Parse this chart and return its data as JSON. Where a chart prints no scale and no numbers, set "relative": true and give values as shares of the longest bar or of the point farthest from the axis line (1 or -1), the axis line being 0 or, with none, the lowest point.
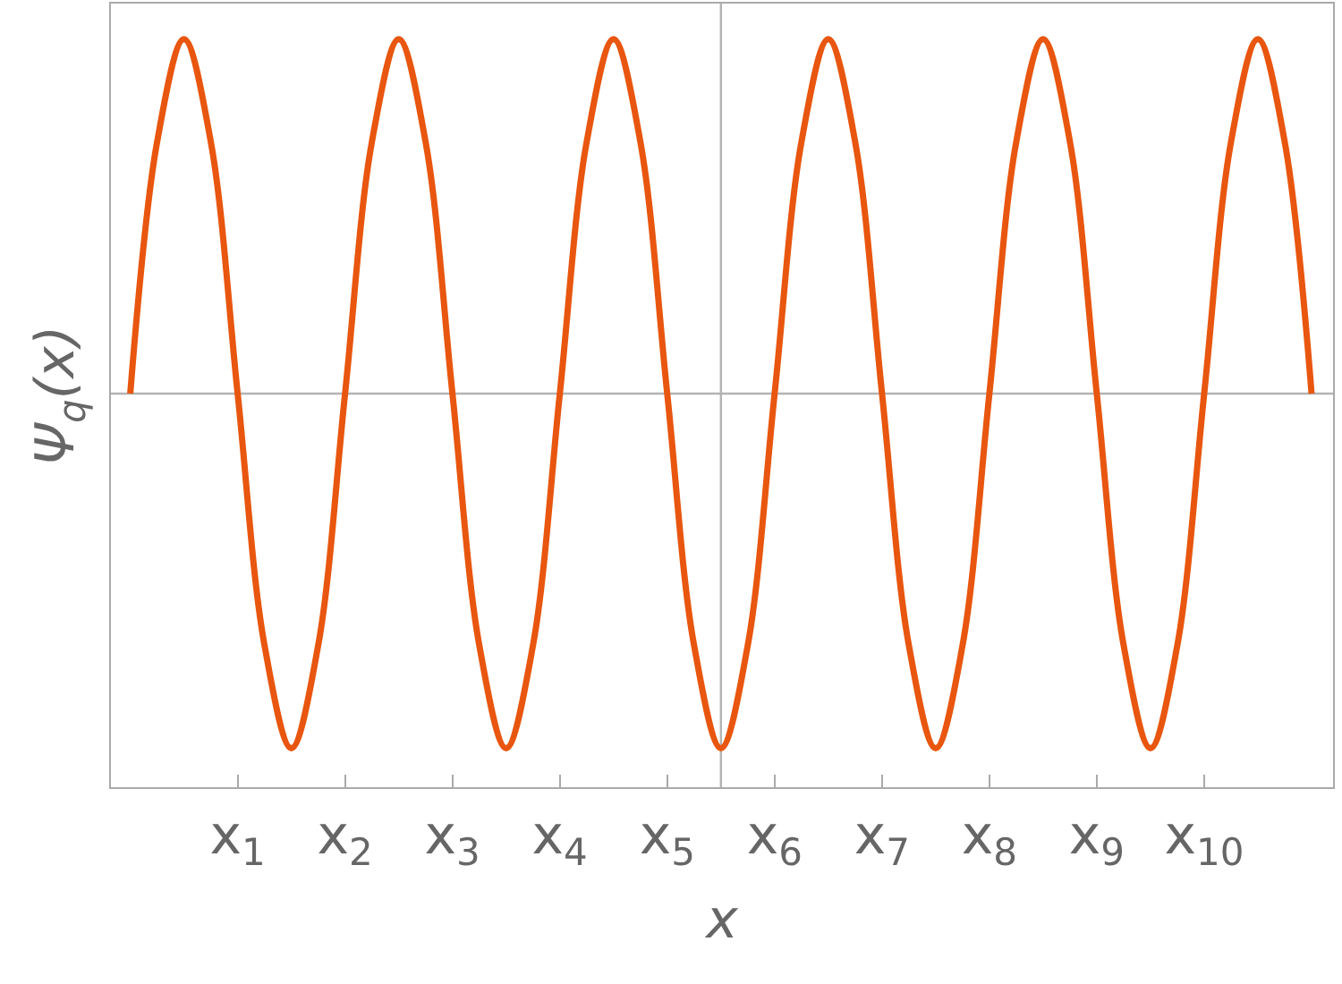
{
  "chart_data": {
    "type": "line",
    "relative": true,
    "xlabel": "x",
    "ylabel": "Ψ$_{q}$(x)",
    "x": [
      0,
      0.25,
      0.5,
      0.75,
      1,
      1.25,
      1.5,
      1.75,
      2,
      2.25,
      2.5,
      2.75,
      3,
      3.25,
      3.5,
      3.75,
      4,
      4.25,
      4.5,
      4.75,
      5,
      5.25,
      5.5,
      5.75,
      6,
      6.25,
      6.5,
      6.75,
      7,
      7.25,
      7.5,
      7.75,
      8,
      8.25,
      8.5,
      8.75,
      9,
      9.25,
      9.5,
      9.75,
      10,
      10.25,
      10.5,
      10.75,
      11
    ],
    "series": [
      {
        "color": "#e8560f",
        "values": [
          0,
          0.71,
          1,
          0.71,
          0,
          -0.71,
          -1,
          -0.71,
          0,
          0.71,
          1,
          0.71,
          0,
          -0.71,
          -1,
          -0.71,
          0,
          0.71,
          1,
          0.71,
          0,
          -0.71,
          -1,
          -0.71,
          0,
          0.71,
          1,
          0.71,
          0,
          -0.71,
          -1,
          -0.71,
          0,
          0.71,
          1,
          0.71,
          0,
          -0.71,
          -1,
          -0.71,
          0,
          0.71,
          1,
          0.71,
          0
        ]
      }
    ],
    "xlim": [
      -0.18,
      11.2
    ],
    "xticks": [
      {
        "value": 1,
        "label": "x$_{1}$"
      },
      {
        "value": 2,
        "label": "x$_{2}$"
      },
      {
        "value": 3,
        "label": "x$_{3}$"
      },
      {
        "value": 4,
        "label": "x$_{4}$"
      },
      {
        "value": 5,
        "label": "x$_{5}$"
      },
      {
        "value": 6,
        "label": "x$_{6}$"
      },
      {
        "value": 7,
        "label": "x$_{7}$"
      },
      {
        "value": 8,
        "label": "x$_{8}$"
      },
      {
        "value": 9,
        "label": "x$_{9}$"
      },
      {
        "value": 10,
        "label": "x$_{10}$"
      }
    ],
    "ref_lines": [
      {
        "axis": "x",
        "value": 5.5,
        "color": "#b3b3b3"
      },
      {
        "axis": "y",
        "value": 0,
        "color": "#b3b3b3"
      }
    ],
    "marker": "none",
    "line_style": "solid",
    "tick_labels": "x"
  }
}
